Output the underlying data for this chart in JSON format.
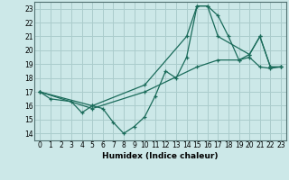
{
  "background_color": "#cce8e8",
  "grid_color": "#aacccc",
  "line_color": "#1a6b5a",
  "xlabel": "Humidex (Indice chaleur)",
  "xlim": [
    -0.5,
    23.5
  ],
  "ylim": [
    13.5,
    23.5
  ],
  "yticks": [
    14,
    15,
    16,
    17,
    18,
    19,
    20,
    21,
    22,
    23
  ],
  "xticks": [
    0,
    1,
    2,
    3,
    4,
    5,
    6,
    7,
    8,
    9,
    10,
    11,
    12,
    13,
    14,
    15,
    16,
    17,
    18,
    19,
    20,
    21,
    22,
    23
  ],
  "line1_x": [
    0,
    1,
    3,
    4,
    5,
    6,
    7,
    8,
    9,
    10,
    11,
    12,
    13,
    14,
    15,
    16,
    17,
    18,
    19,
    20,
    21,
    22,
    23
  ],
  "line1_y": [
    17,
    16.5,
    16.3,
    15.5,
    16.0,
    15.8,
    14.8,
    14.0,
    14.5,
    15.2,
    16.7,
    18.5,
    18.0,
    19.5,
    23.2,
    23.2,
    22.5,
    21.0,
    19.3,
    19.7,
    21.0,
    18.8,
    18.8
  ],
  "line2_x": [
    0,
    5,
    10,
    14,
    15,
    16,
    17,
    20,
    21,
    22,
    23
  ],
  "line2_y": [
    17,
    16.0,
    17.5,
    21.0,
    23.2,
    23.2,
    21.0,
    19.7,
    21.0,
    18.8,
    18.8
  ],
  "line3_x": [
    0,
    5,
    10,
    15,
    17,
    19,
    20,
    21,
    22,
    23
  ],
  "line3_y": [
    17,
    15.8,
    17.0,
    18.8,
    19.3,
    19.3,
    19.5,
    18.8,
    18.7,
    18.8
  ]
}
